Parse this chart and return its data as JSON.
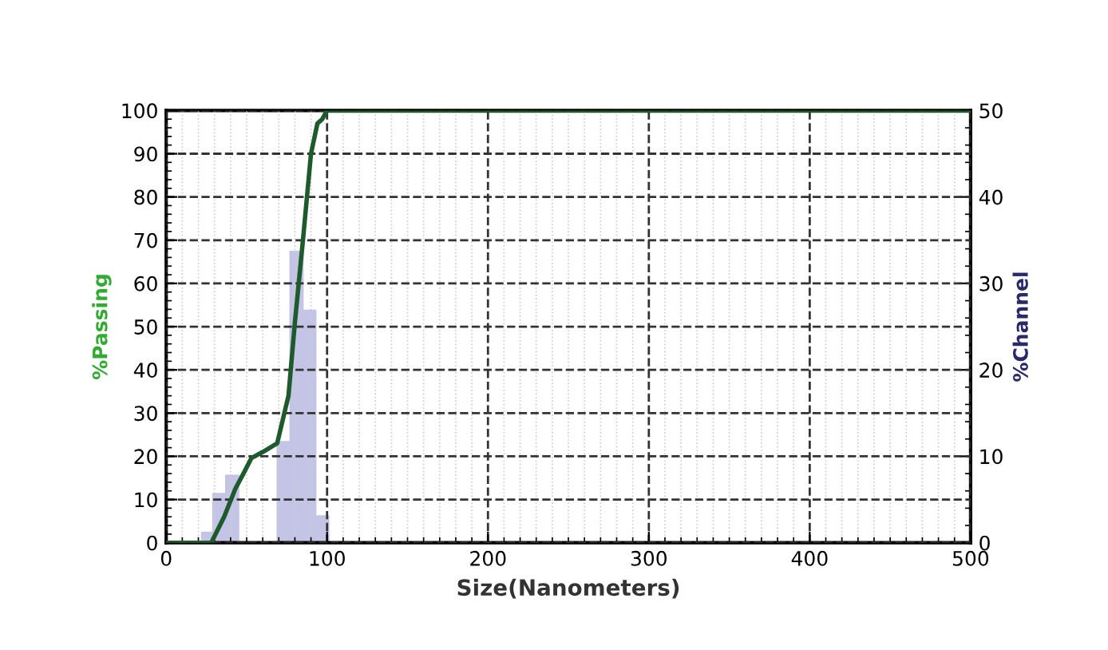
{
  "chart_data": {
    "type": "histogram",
    "xlabel": "Size(Nanometers)",
    "ylabel": "%Passing",
    "y2label": "%Channel",
    "xlim": [
      0,
      500
    ],
    "xticks": [
      0,
      100,
      200,
      300,
      400,
      500
    ],
    "ylim": [
      0,
      100
    ],
    "yticks": [
      0,
      10,
      20,
      30,
      40,
      50,
      60,
      70,
      80,
      90,
      100
    ],
    "y2lim": [
      0,
      50
    ],
    "y2ticks": [
      0,
      10,
      20,
      30,
      40,
      50
    ],
    "grid": true,
    "series": [
      {
        "axis": "y2",
        "color": "#c4c4e6",
        "bins": [
          22,
          29,
          37,
          45,
          53,
          61,
          69,
          77,
          85,
          93,
          101
        ],
        "values": [
          1.2,
          5.7,
          7.8,
          0,
          0,
          0,
          11.7,
          33.7,
          26.9,
          3.1
        ]
      },
      {
        "type": "line",
        "axis": "y",
        "color": "#1e5a2c",
        "x": [
          0,
          28,
          36,
          43,
          48,
          53,
          60,
          69,
          76,
          80,
          85,
          90,
          94,
          97,
          100,
          500
        ],
        "values": [
          0,
          0,
          6,
          12.5,
          16,
          19.6,
          21,
          23,
          34,
          51,
          70,
          90,
          97,
          98,
          100,
          100
        ]
      }
    ]
  }
}
